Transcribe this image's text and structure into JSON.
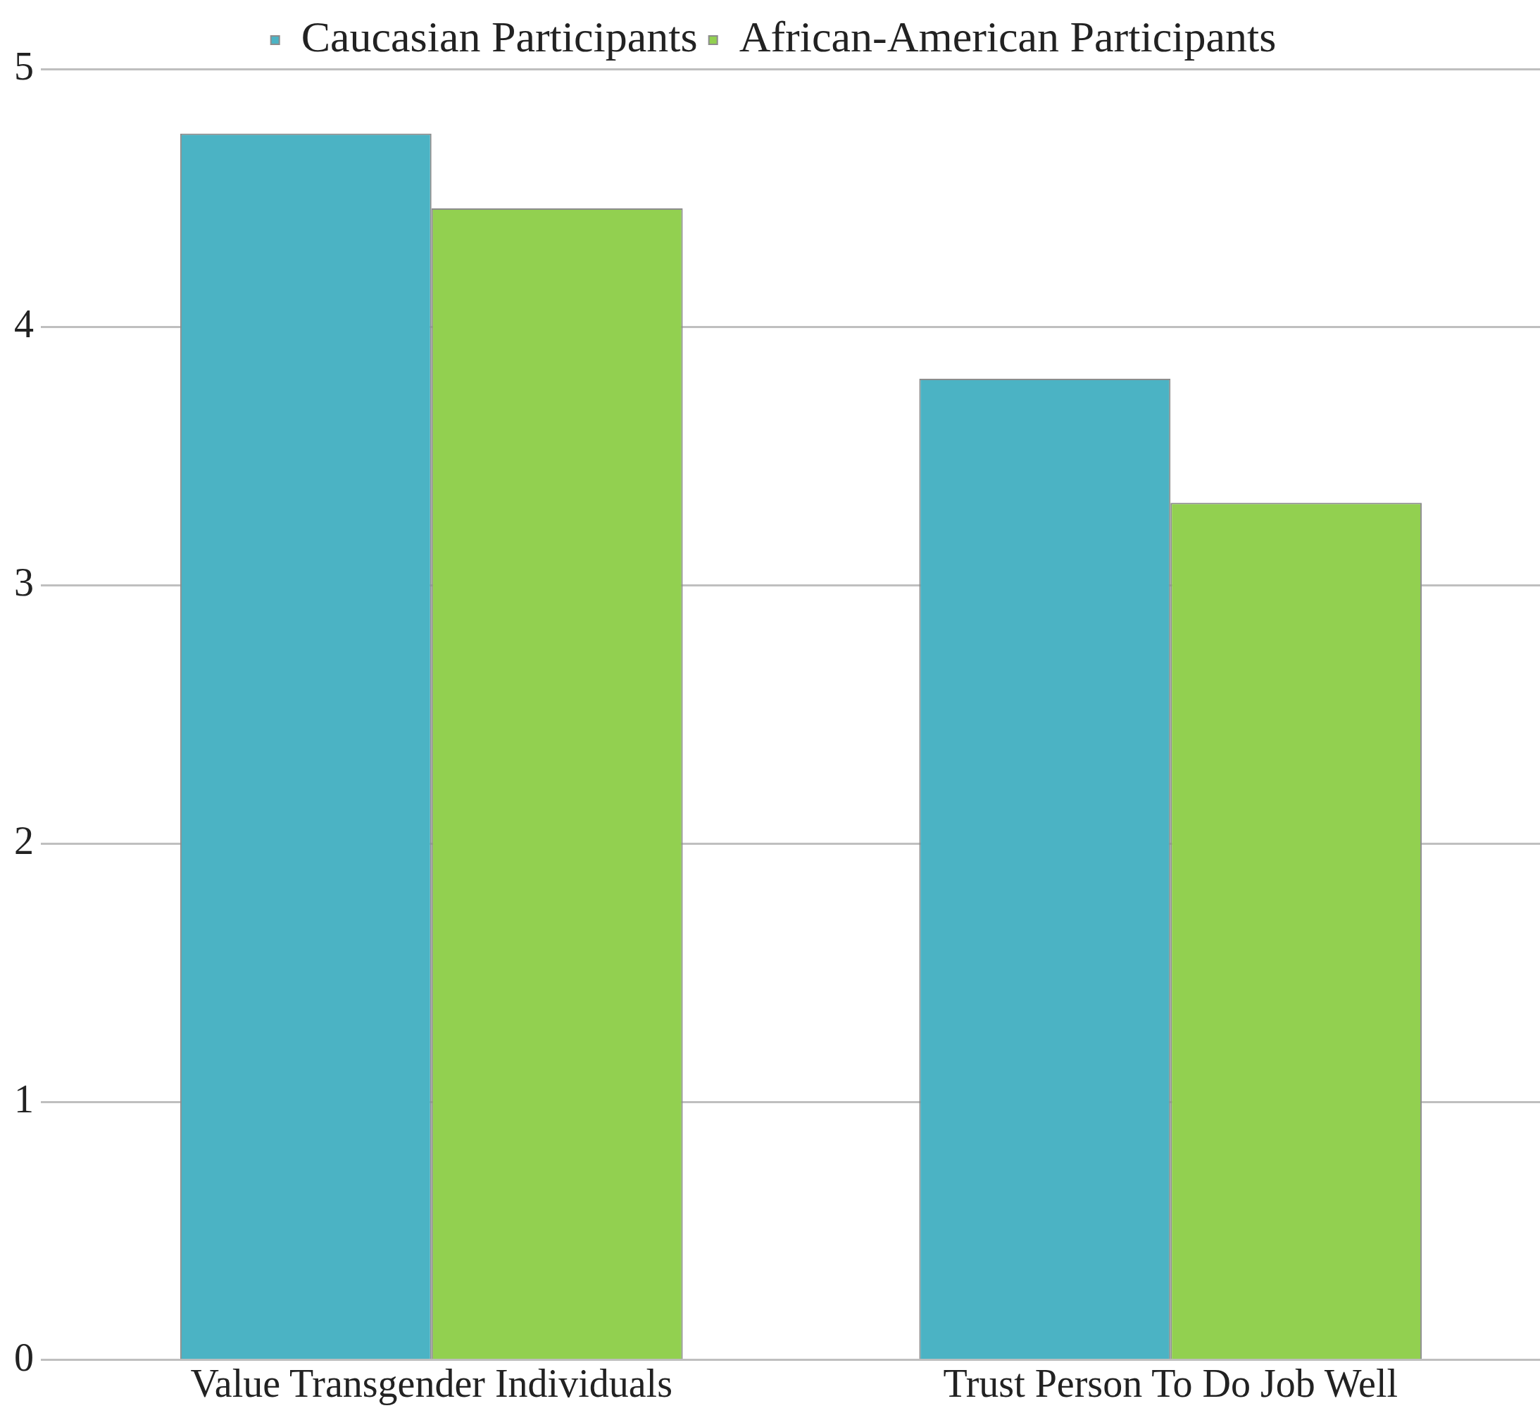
{
  "chart_data": {
    "type": "bar",
    "categories": [
      "Value Transgender Individuals",
      "Trust Person To Do Job Well"
    ],
    "series": [
      {
        "name": "Caucasian Participants",
        "color": "#4bb3c4",
        "values": [
          4.75,
          3.8
        ]
      },
      {
        "name": "African-American Participants",
        "color": "#92d050",
        "values": [
          4.46,
          3.32
        ]
      }
    ],
    "ylim": [
      0,
      5
    ],
    "yticks": [
      0,
      1,
      2,
      3,
      4,
      5
    ],
    "grid": "y",
    "legend": "top"
  }
}
